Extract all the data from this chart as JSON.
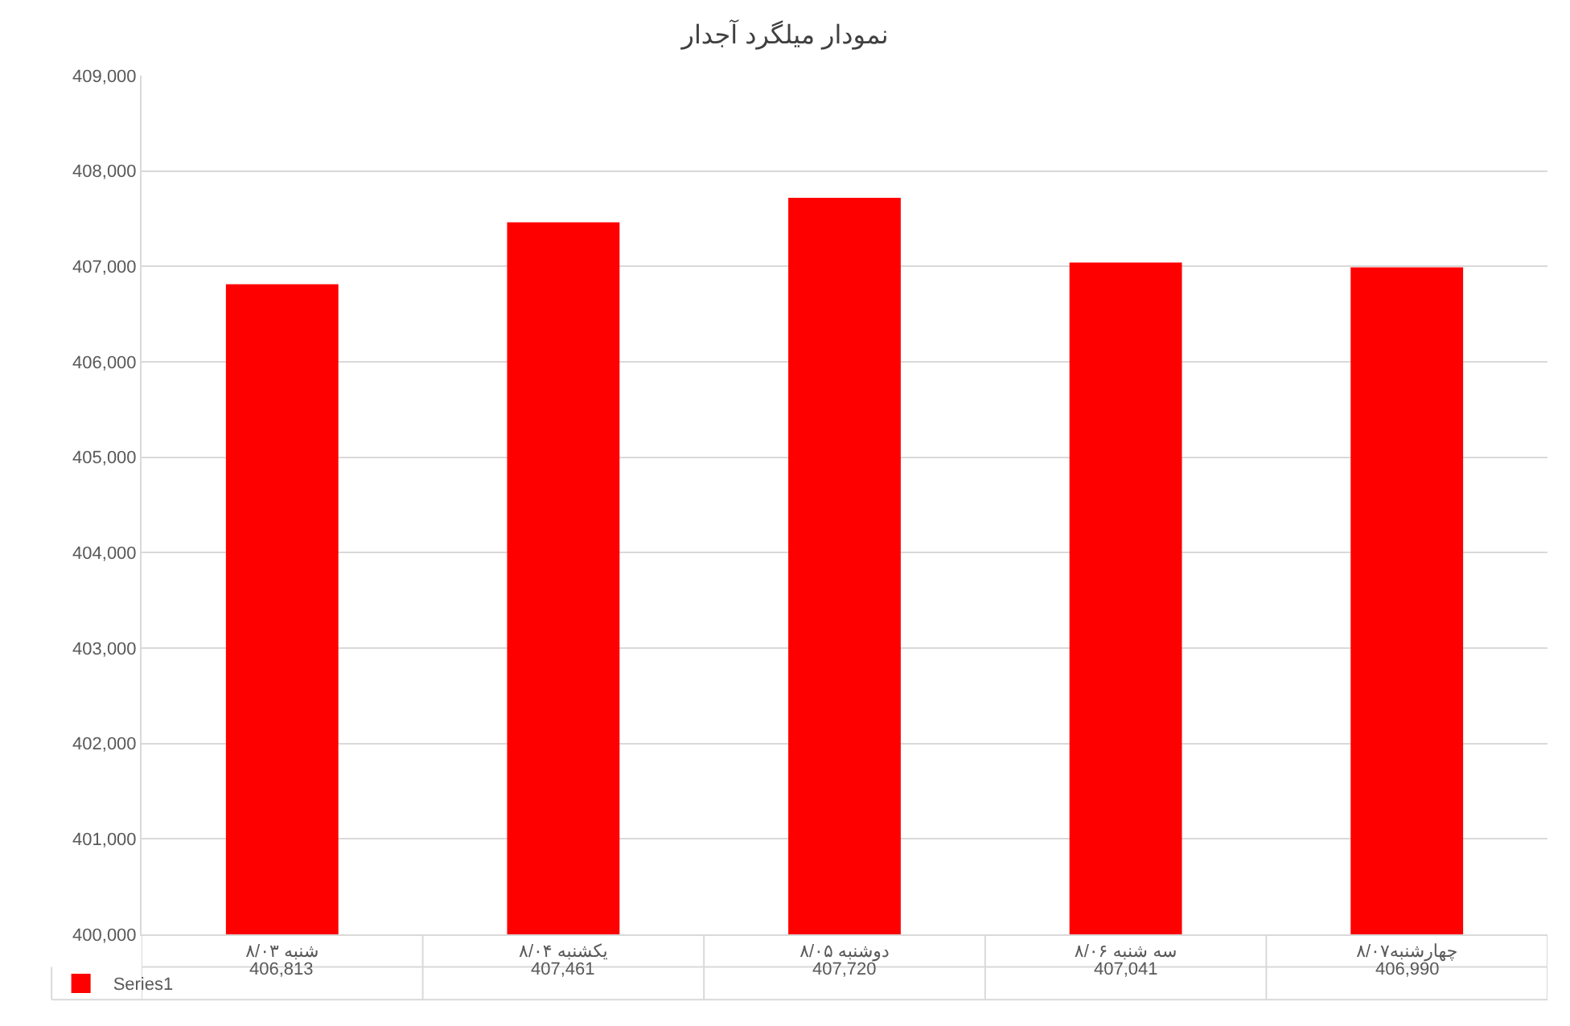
{
  "chart_data": {
    "type": "bar",
    "title": "نمودار میلگرد آجدار",
    "categories": [
      "شنبه ۸/۰۳",
      "یکشنبه ۸/۰۴",
      "دوشنبه ۸/۰۵",
      "سه شنبه ۸/۰۶",
      "چهارشنبه۸/۰۷"
    ],
    "series": [
      {
        "name": "Series1",
        "color": "#ff0000",
        "values": [
          406813,
          407461,
          407720,
          407041,
          406990
        ],
        "value_labels": [
          "406,813",
          "407,461",
          "407,720",
          "407,041",
          "406,990"
        ]
      }
    ],
    "ylim": [
      400000,
      409000
    ],
    "yticks": [
      {
        "value": 400000,
        "label": "400,000"
      },
      {
        "value": 401000,
        "label": "401,000"
      },
      {
        "value": 402000,
        "label": "402,000"
      },
      {
        "value": 403000,
        "label": "403,000"
      },
      {
        "value": 404000,
        "label": "404,000"
      },
      {
        "value": 405000,
        "label": "405,000"
      },
      {
        "value": 406000,
        "label": "406,000"
      },
      {
        "value": 407000,
        "label": "407,000"
      },
      {
        "value": 408000,
        "label": "408,000"
      },
      {
        "value": 409000,
        "label": "409,000"
      }
    ],
    "grid": "y",
    "legend": "bottom left"
  }
}
